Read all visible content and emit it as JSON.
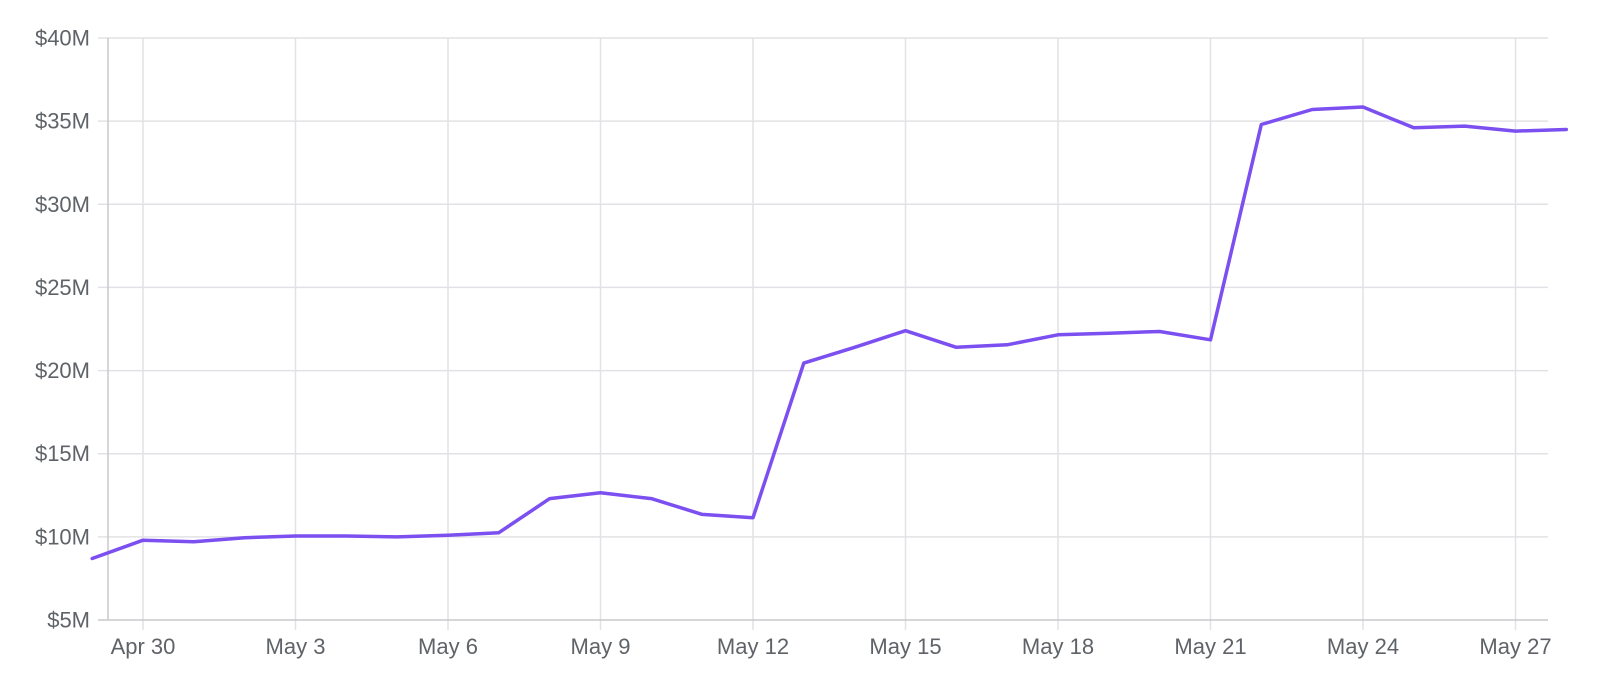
{
  "chart_data": {
    "type": "line",
    "title": "",
    "xlabel": "",
    "ylabel": "",
    "ylim": [
      5000000,
      40000000
    ],
    "xlim": [
      "2024-04-29",
      "2024-05-27"
    ],
    "grid": true,
    "legend": "none",
    "colors": {
      "series": "#7b4ff0",
      "grid": "#e2e2e6",
      "tick_text": "#5f6368"
    },
    "y_ticks": [
      {
        "value": 5000000,
        "label": "$5M"
      },
      {
        "value": 10000000,
        "label": "$10M"
      },
      {
        "value": 15000000,
        "label": "$15M"
      },
      {
        "value": 20000000,
        "label": "$20M"
      },
      {
        "value": 25000000,
        "label": "$25M"
      },
      {
        "value": 30000000,
        "label": "$30M"
      },
      {
        "value": 35000000,
        "label": "$35M"
      },
      {
        "value": 40000000,
        "label": "$40M"
      }
    ],
    "x_ticks": [
      {
        "date": "2024-04-30",
        "label": "Apr 30"
      },
      {
        "date": "2024-05-03",
        "label": "May 3"
      },
      {
        "date": "2024-05-06",
        "label": "May 6"
      },
      {
        "date": "2024-05-09",
        "label": "May 9"
      },
      {
        "date": "2024-05-12",
        "label": "May 12"
      },
      {
        "date": "2024-05-15",
        "label": "May 15"
      },
      {
        "date": "2024-05-18",
        "label": "May 18"
      },
      {
        "date": "2024-05-21",
        "label": "May 21"
      },
      {
        "date": "2024-05-24",
        "label": "May 24"
      },
      {
        "date": "2024-05-27",
        "label": "May 27"
      }
    ],
    "series": [
      {
        "points": [
          {
            "x": "2024-04-29",
            "y": 8700000
          },
          {
            "x": "2024-04-30",
            "y": 9800000
          },
          {
            "x": "2024-05-01",
            "y": 9700000
          },
          {
            "x": "2024-05-02",
            "y": 9950000
          },
          {
            "x": "2024-05-03",
            "y": 10050000
          },
          {
            "x": "2024-05-04",
            "y": 10050000
          },
          {
            "x": "2024-05-05",
            "y": 10000000
          },
          {
            "x": "2024-05-06",
            "y": 10100000
          },
          {
            "x": "2024-05-07",
            "y": 10250000
          },
          {
            "x": "2024-05-08",
            "y": 12300000
          },
          {
            "x": "2024-05-09",
            "y": 12650000
          },
          {
            "x": "2024-05-10",
            "y": 12300000
          },
          {
            "x": "2024-05-11",
            "y": 11350000
          },
          {
            "x": "2024-05-12",
            "y": 11150000
          },
          {
            "x": "2024-05-13",
            "y": 20450000
          },
          {
            "x": "2024-05-14",
            "y": 21400000
          },
          {
            "x": "2024-05-15",
            "y": 22400000
          },
          {
            "x": "2024-05-16",
            "y": 21400000
          },
          {
            "x": "2024-05-17",
            "y": 21550000
          },
          {
            "x": "2024-05-18",
            "y": 22150000
          },
          {
            "x": "2024-05-19",
            "y": 22250000
          },
          {
            "x": "2024-05-20",
            "y": 22350000
          },
          {
            "x": "2024-05-21",
            "y": 21850000
          },
          {
            "x": "2024-05-22",
            "y": 34800000
          },
          {
            "x": "2024-05-23",
            "y": 35700000
          },
          {
            "x": "2024-05-24",
            "y": 35850000
          },
          {
            "x": "2024-05-25",
            "y": 34600000
          },
          {
            "x": "2024-05-26",
            "y": 34700000
          },
          {
            "x": "2024-05-27",
            "y": 34400000
          },
          {
            "x": "2024-05-28",
            "y": 34500000
          }
        ]
      }
    ]
  }
}
